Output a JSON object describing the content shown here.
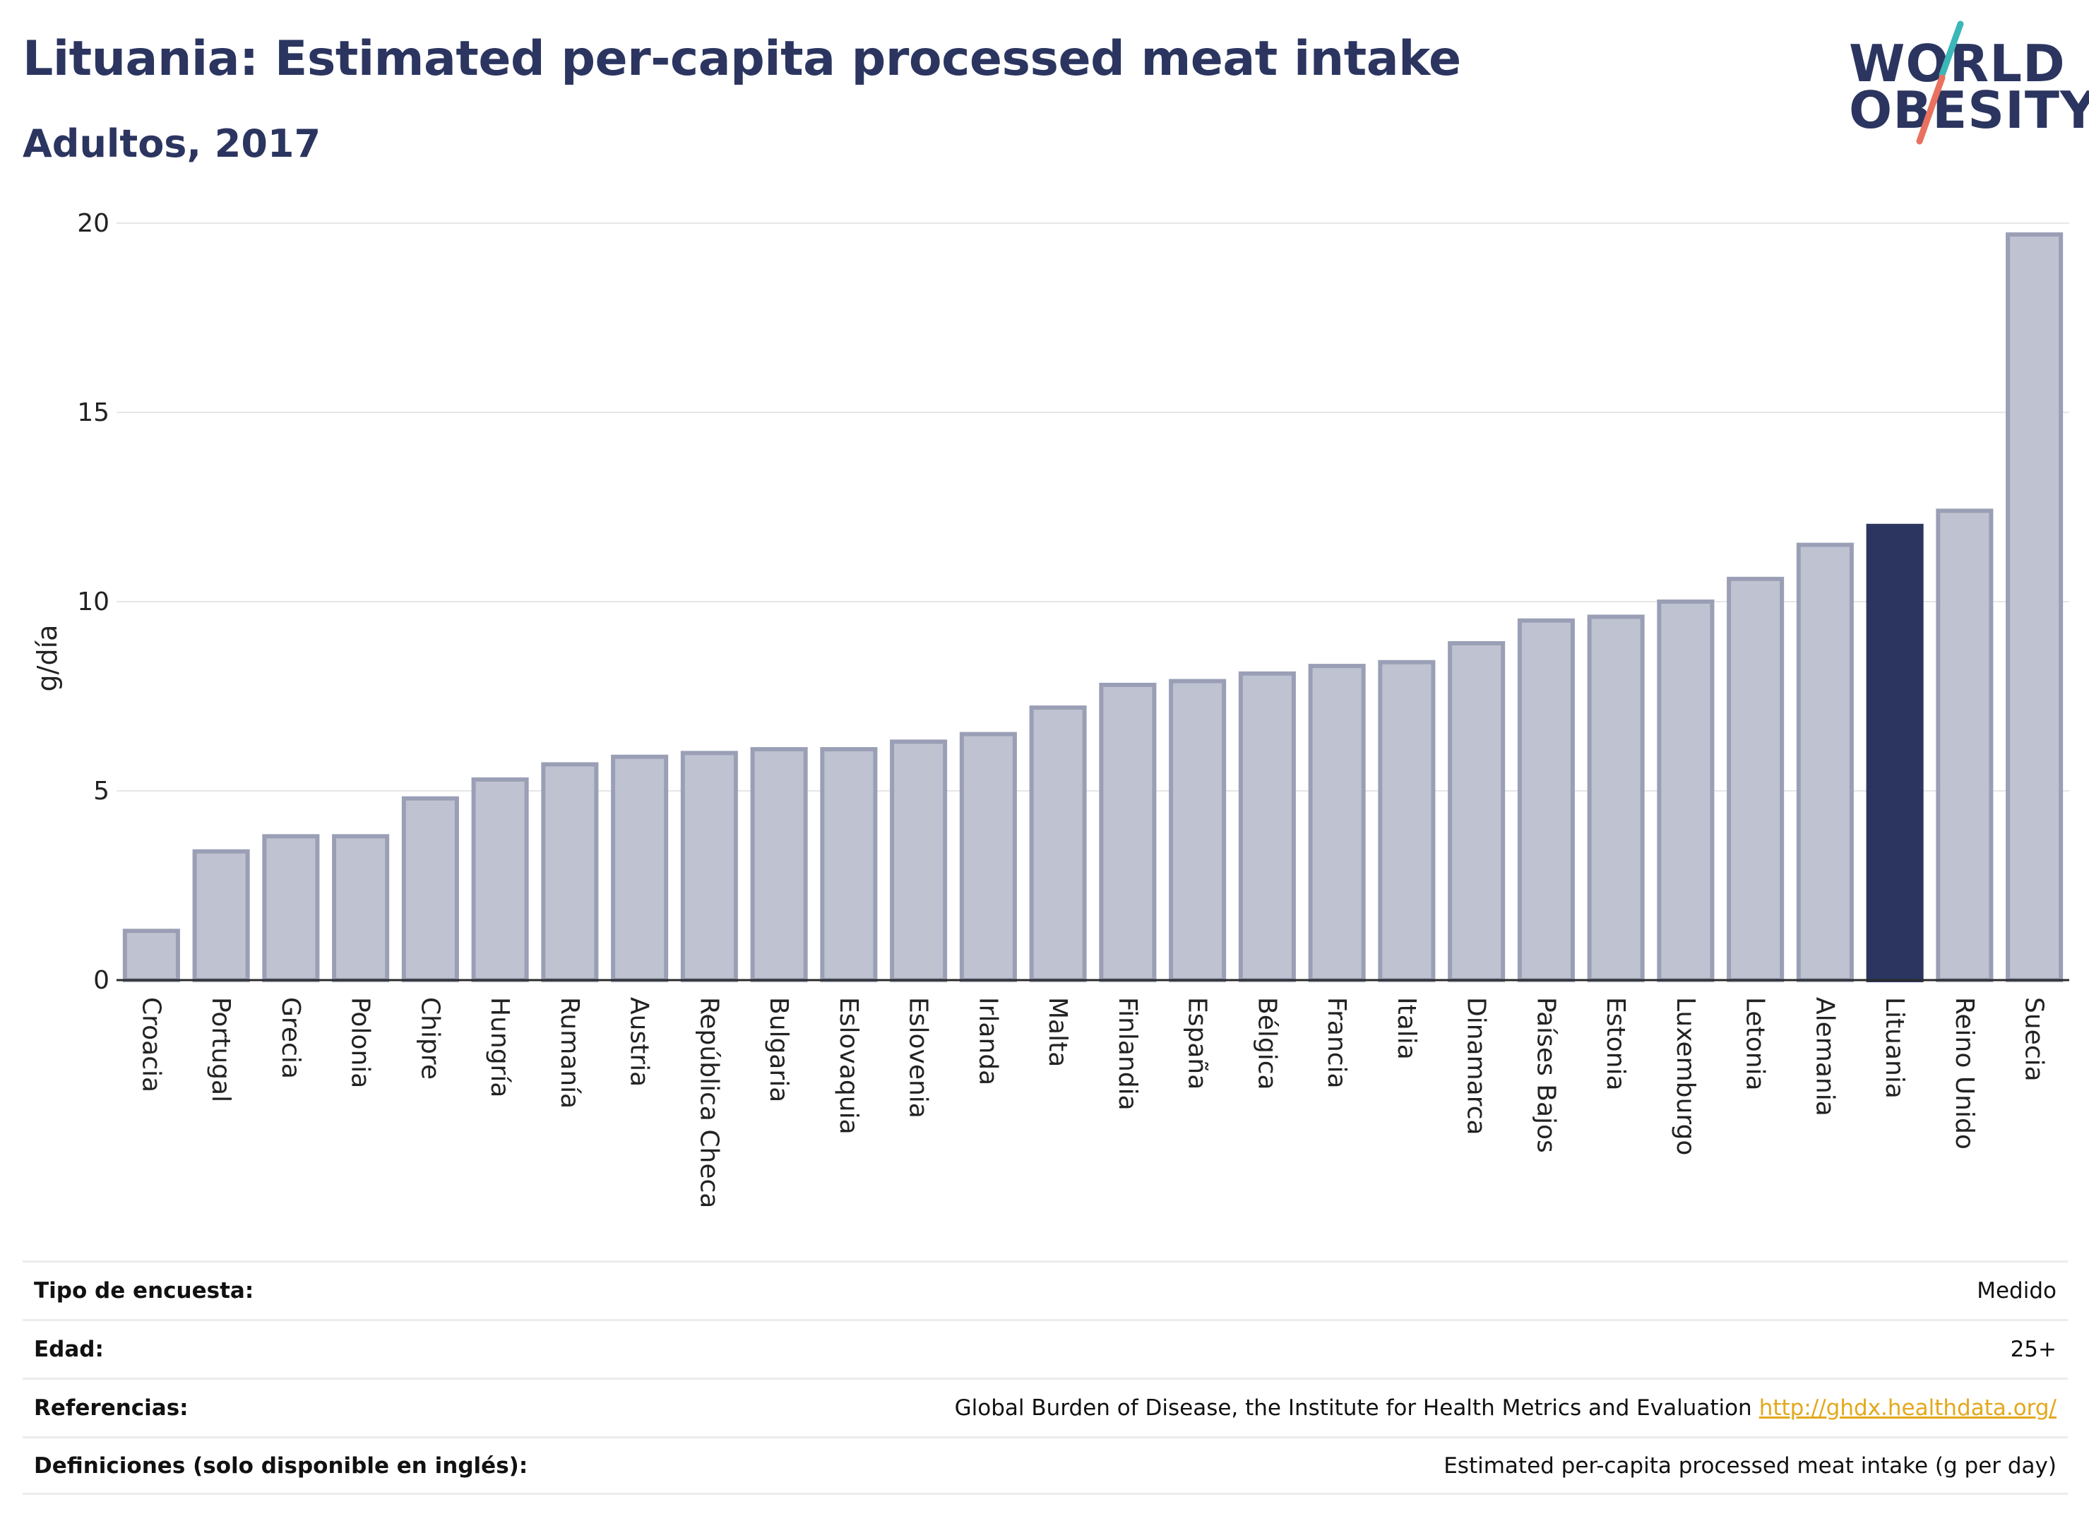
{
  "header": {
    "title": "Lituania: Estimated per-capita processed meat intake",
    "subtitle": "Adultos, 2017"
  },
  "logo": {
    "line1": "WORLD",
    "line2": "OBESITY",
    "slash_colors": [
      "#3bb7b8",
      "#e8715f"
    ]
  },
  "colors": {
    "bar": "#bfc3d1",
    "bar_stroke": "#9a9fb6",
    "highlight": "#2b3560",
    "grid": "#e6e6e6"
  },
  "chart_data": {
    "type": "bar",
    "title": "Lituania: Estimated per-capita processed meat intake",
    "subtitle": "Adultos, 2017",
    "xlabel": "",
    "ylabel": "g/día",
    "ylim": [
      0,
      20
    ],
    "yticks": [
      0,
      5,
      10,
      15,
      20
    ],
    "grid": true,
    "highlight": "Lituania",
    "categories": [
      "Croacia",
      "Portugal",
      "Grecia",
      "Polonia",
      "Chipre",
      "Hungría",
      "Rumanía",
      "Austria",
      "República Checa",
      "Bulgaria",
      "Eslovaquia",
      "Eslovenia",
      "Irlanda",
      "Malta",
      "Finlandia",
      "España",
      "Bélgica",
      "Francia",
      "Italia",
      "Dinamarca",
      "Países Bajos",
      "Estonia",
      "Luxemburgo",
      "Letonia",
      "Alemania",
      "Lituania",
      "Reino Unido",
      "Suecia"
    ],
    "values": [
      1.3,
      3.4,
      3.8,
      3.8,
      4.8,
      5.3,
      5.7,
      5.9,
      6.0,
      6.1,
      6.1,
      6.3,
      6.5,
      7.2,
      7.8,
      7.9,
      8.1,
      8.3,
      8.4,
      8.9,
      9.5,
      9.6,
      10.0,
      10.6,
      11.5,
      12.0,
      12.4,
      19.7
    ]
  },
  "info": [
    {
      "key": "Tipo de encuesta:",
      "value": "Medido"
    },
    {
      "key": "Edad:",
      "value": "25+"
    },
    {
      "key": "Referencias:",
      "value": "Global Burden of Disease, the Institute for Health Metrics and Evaluation",
      "link": "http://ghdx.healthdata.org/"
    },
    {
      "key": "Definiciones (solo disponible en inglés):",
      "value": "Estimated per-capita processed meat intake (g per day)"
    }
  ]
}
